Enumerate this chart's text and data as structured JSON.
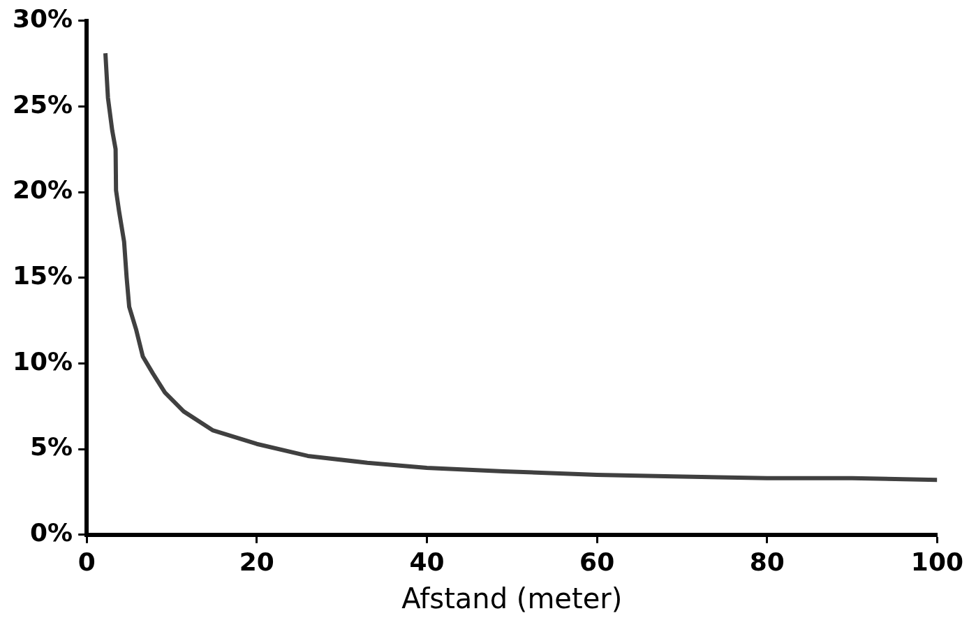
{
  "chart_data": {
    "type": "line",
    "xlabel": "Afstand (meter)",
    "x": [
      2.2,
      2.5,
      3.0,
      3.4,
      3.45,
      3.8,
      4.4,
      4.7,
      5.0,
      5.8,
      6.6,
      7.8,
      9.2,
      11.4,
      14.8,
      20,
      26,
      33,
      40,
      49,
      60,
      69,
      80,
      90,
      100
    ],
    "series": [
      {
        "color": "#404040",
        "values": [
          28.1,
          25.5,
          23.6,
          22.5,
          20.1,
          18.9,
          17.1,
          15.0,
          13.3,
          12.0,
          10.4,
          9.4,
          8.3,
          7.2,
          6.1,
          5.3,
          4.6,
          4.2,
          3.9,
          3.7,
          3.5,
          3.4,
          3.3,
          3.3,
          3.2
        ]
      }
    ],
    "xlim": [
      0,
      100
    ],
    "xticks": [
      0,
      20,
      40,
      60,
      80,
      100
    ],
    "ylim": [
      0,
      30
    ],
    "yticks": [
      {
        "value": 0,
        "label": "0%"
      },
      {
        "value": 5,
        "label": "5%"
      },
      {
        "value": 10,
        "label": "10%"
      },
      {
        "value": 15,
        "label": "15%"
      },
      {
        "value": 20,
        "label": "20%"
      },
      {
        "value": 25,
        "label": "25%"
      },
      {
        "value": 30,
        "label": "30%"
      }
    ],
    "grid": false,
    "legend": false,
    "marker": "none",
    "line_style": "solid"
  }
}
